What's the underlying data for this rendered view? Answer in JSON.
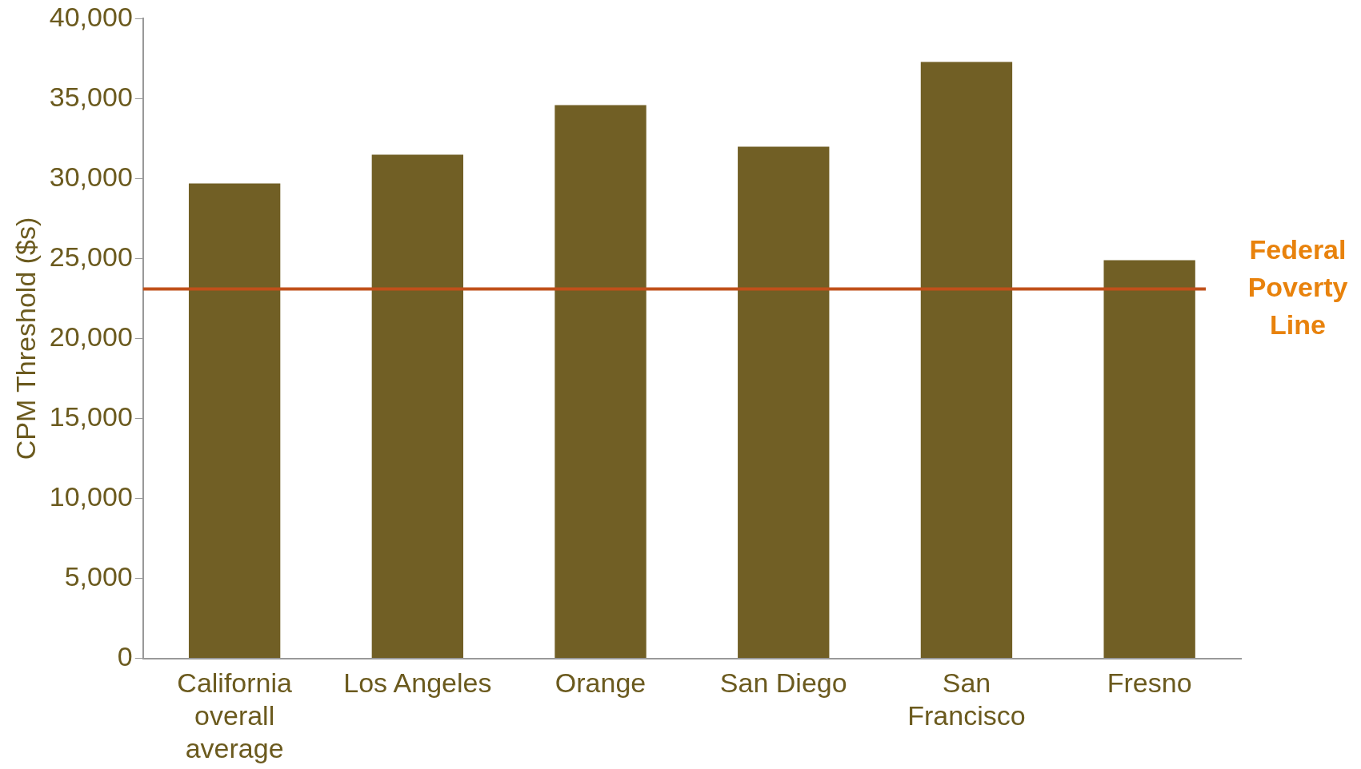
{
  "chart_data": {
    "type": "bar",
    "ylabel": "CPM Threshold ($s)",
    "categories": [
      "California overall average",
      "Los Angeles",
      "Orange",
      "San Diego",
      "San Francisco",
      "Fresno"
    ],
    "values": [
      29700,
      31500,
      34600,
      32000,
      37300,
      24900
    ],
    "color": "#715f25",
    "ylim": [
      0,
      40000
    ],
    "yticks": [
      0,
      {
        "value": 5000,
        "label": "5,000"
      },
      {
        "value": 10000,
        "label": "10,000"
      },
      {
        "value": 15000,
        "label": "15,000"
      },
      {
        "value": 20000,
        "label": "20,000"
      },
      {
        "value": 25000,
        "label": "25,000"
      },
      {
        "value": 30000,
        "label": "30,000"
      },
      {
        "value": 35000,
        "label": "35,000"
      },
      {
        "value": 40000,
        "label": "40,000"
      }
    ],
    "grid": false,
    "legend": false,
    "ref_lines": [
      {
        "axis": "y",
        "value": 23100,
        "label": "Federal Poverty Line",
        "color": "#c0501a"
      }
    ]
  }
}
